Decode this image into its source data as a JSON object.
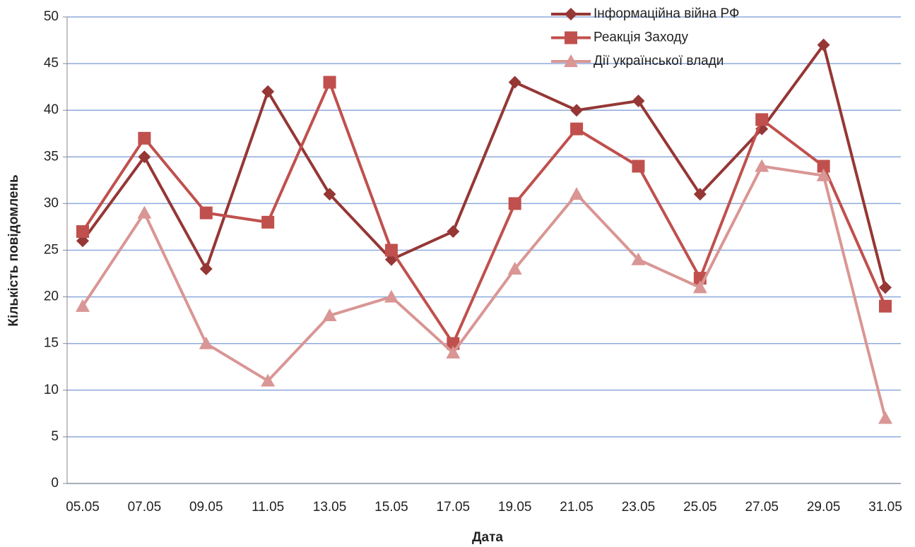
{
  "chart_data": {
    "type": "line",
    "x_label": "Дата",
    "y_label": "Кількість повідомлень",
    "categories": [
      "05.05",
      "07.05",
      "09.05",
      "11.05",
      "13.05",
      "15.05",
      "17.05",
      "19.05",
      "21.05",
      "23.05",
      "25.05",
      "27.05",
      "29.05",
      "31.05"
    ],
    "series": [
      {
        "name": "Інформаційна війна РФ",
        "color": "#953735",
        "marker": "diamond",
        "values": [
          26,
          35,
          23,
          42,
          31,
          24,
          27,
          43,
          40,
          41,
          31,
          38,
          47,
          21
        ]
      },
      {
        "name": "Реакція Заходу",
        "color": "#c0504d",
        "marker": "square",
        "values": [
          27,
          37,
          29,
          28,
          43,
          25,
          15,
          30,
          38,
          34,
          22,
          39,
          34,
          19
        ]
      },
      {
        "name": "Дії української влади",
        "color": "#d99694",
        "marker": "triangle",
        "values": [
          19,
          29,
          15,
          11,
          18,
          20,
          14,
          23,
          31,
          24,
          21,
          34,
          33,
          7
        ]
      }
    ],
    "ylim": [
      0,
      50
    ],
    "yticks": [
      0,
      5,
      10,
      15,
      20,
      25,
      30,
      35,
      40,
      45,
      50
    ],
    "grid": true,
    "legend": "top-right"
  }
}
